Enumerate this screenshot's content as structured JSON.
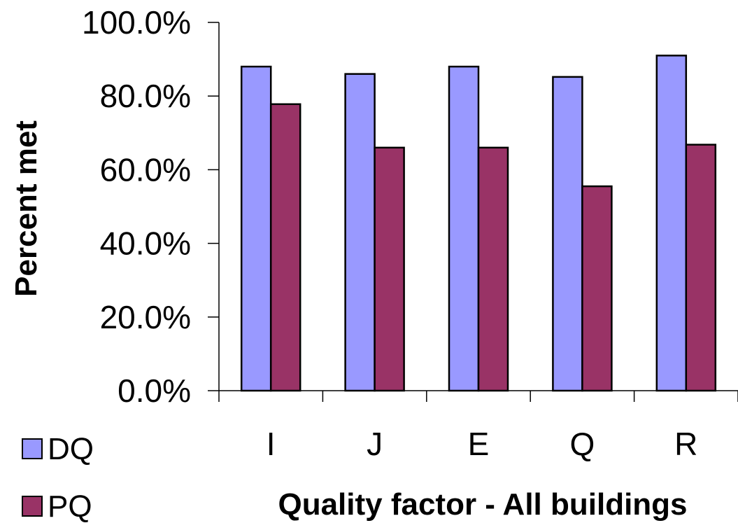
{
  "chart_data": {
    "type": "bar",
    "categories": [
      "I",
      "J",
      "E",
      "Q",
      "R"
    ],
    "series": [
      {
        "name": "DQ",
        "values": [
          88.0,
          86.0,
          88.0,
          85.2,
          91.0
        ],
        "color": "#9999ff"
      },
      {
        "name": "PQ",
        "values": [
          77.8,
          66.0,
          66.0,
          55.5,
          66.8
        ],
        "color": "#993366"
      }
    ],
    "ylim": [
      0,
      100
    ],
    "yticks": [
      "0.0%",
      "20.0%",
      "40.0%",
      "60.0%",
      "80.0%",
      "100.0%"
    ],
    "ytick_values": [
      0,
      20,
      40,
      60,
      80,
      100
    ],
    "xlabel": "Quality factor - All buildings",
    "ylabel": "Percent met",
    "legend_position": "bottom-left",
    "grid": false
  }
}
